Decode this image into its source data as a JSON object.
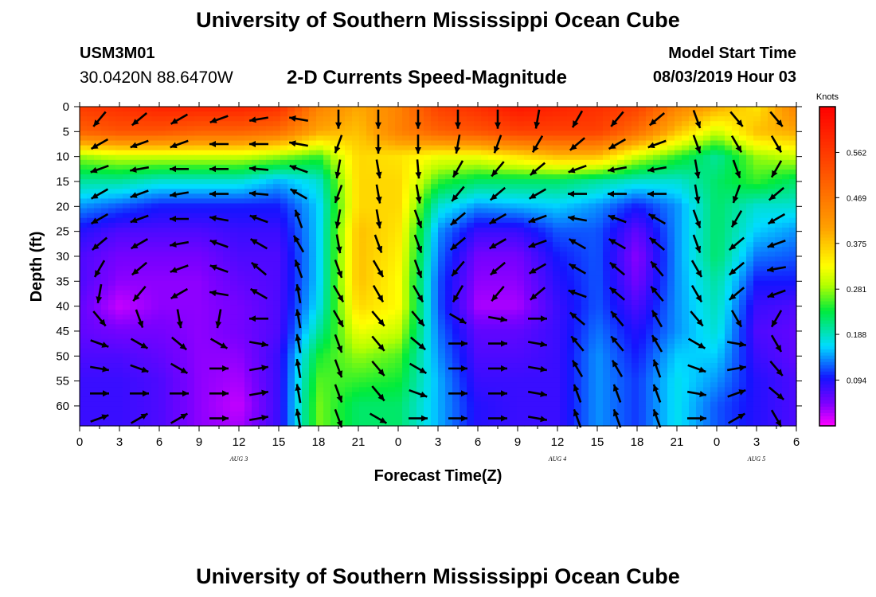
{
  "header": {
    "title": "University of Southern Mississippi Ocean Cube",
    "station_id": "USM3M01",
    "station_coords": "30.0420N 88.6470W",
    "chart_title": "2-D Currents Speed-Magnitude",
    "model_start_label": "Model Start Time",
    "model_start_value": "08/03/2019 Hour 03"
  },
  "footer": {
    "title": "University of Southern Mississippi Ocean Cube"
  },
  "chart_data": {
    "type": "heatmap",
    "title": "2-D Currents Speed-Magnitude",
    "xlabel": "Forecast Time(Z)",
    "ylabel": "Depth (ft)",
    "x_ticks": [
      "0",
      "3",
      "6",
      "9",
      "12",
      "15",
      "18",
      "21",
      "0",
      "3",
      "6",
      "9",
      "12",
      "15",
      "18",
      "21",
      "0",
      "3",
      "6"
    ],
    "day_labels": [
      {
        "label": "AUG 3",
        "hour": 12
      },
      {
        "label": "AUG 4",
        "hour": 36
      },
      {
        "label": "AUG 5",
        "hour": 51
      }
    ],
    "xlim_hours": [
      0,
      54
    ],
    "y_ticks": [
      "0",
      "5",
      "10",
      "15",
      "20",
      "25",
      "30",
      "35",
      "40",
      "45",
      "50",
      "55",
      "60"
    ],
    "ylim_ft": [
      0,
      64
    ],
    "colorbar": {
      "unit": "Knots",
      "tick_labels": [
        "0.562",
        "0.469",
        "0.375",
        "0.281",
        "0.188",
        "0.094"
      ],
      "tick_values": [
        0.562,
        0.469,
        0.375,
        0.281,
        0.188,
        0.094
      ],
      "range": [
        0.0,
        0.656
      ]
    },
    "speed_field": {
      "hours": [
        0,
        3,
        6,
        9,
        12,
        15,
        18,
        21,
        24,
        27,
        30,
        33,
        36,
        39,
        42,
        45,
        48,
        51,
        54
      ],
      "depths_ft": [
        0,
        5,
        10,
        15,
        20,
        25,
        30,
        35,
        40,
        45,
        50,
        55,
        60,
        64
      ],
      "values_knots": [
        [
          0.56,
          0.58,
          0.6,
          0.6,
          0.6,
          0.58,
          0.45,
          0.4,
          0.45,
          0.55,
          0.58,
          0.62,
          0.6,
          0.58,
          0.55,
          0.45,
          0.4,
          0.35,
          0.45
        ],
        [
          0.5,
          0.52,
          0.52,
          0.5,
          0.5,
          0.48,
          0.4,
          0.38,
          0.45,
          0.5,
          0.52,
          0.55,
          0.55,
          0.55,
          0.48,
          0.38,
          0.3,
          0.38,
          0.4
        ],
        [
          0.28,
          0.3,
          0.3,
          0.3,
          0.3,
          0.28,
          0.25,
          0.36,
          0.35,
          0.32,
          0.32,
          0.35,
          0.38,
          0.38,
          0.3,
          0.25,
          0.2,
          0.28,
          0.3
        ],
        [
          0.2,
          0.2,
          0.18,
          0.18,
          0.18,
          0.15,
          0.18,
          0.36,
          0.36,
          0.25,
          0.22,
          0.22,
          0.22,
          0.2,
          0.18,
          0.18,
          0.22,
          0.25,
          0.22
        ],
        [
          0.14,
          0.12,
          0.1,
          0.1,
          0.1,
          0.1,
          0.16,
          0.36,
          0.36,
          0.18,
          0.14,
          0.15,
          0.16,
          0.14,
          0.1,
          0.14,
          0.22,
          0.18,
          0.18
        ],
        [
          0.09,
          0.07,
          0.07,
          0.07,
          0.08,
          0.08,
          0.16,
          0.38,
          0.35,
          0.14,
          0.08,
          0.08,
          0.12,
          0.12,
          0.06,
          0.14,
          0.22,
          0.16,
          0.14
        ],
        [
          0.07,
          0.05,
          0.05,
          0.05,
          0.07,
          0.07,
          0.16,
          0.38,
          0.34,
          0.13,
          0.05,
          0.05,
          0.1,
          0.12,
          0.04,
          0.14,
          0.22,
          0.13,
          0.12
        ],
        [
          0.07,
          0.04,
          0.04,
          0.04,
          0.06,
          0.07,
          0.16,
          0.38,
          0.33,
          0.12,
          0.04,
          0.04,
          0.09,
          0.12,
          0.05,
          0.14,
          0.2,
          0.1,
          0.1
        ],
        [
          0.06,
          0.02,
          0.04,
          0.04,
          0.05,
          0.07,
          0.17,
          0.36,
          0.33,
          0.12,
          0.03,
          0.03,
          0.08,
          0.12,
          0.07,
          0.14,
          0.19,
          0.08,
          0.07
        ],
        [
          0.06,
          0.05,
          0.05,
          0.04,
          0.05,
          0.07,
          0.2,
          0.32,
          0.3,
          0.13,
          0.06,
          0.06,
          0.08,
          0.13,
          0.09,
          0.14,
          0.18,
          0.07,
          0.06
        ],
        [
          0.07,
          0.07,
          0.06,
          0.04,
          0.04,
          0.08,
          0.24,
          0.28,
          0.26,
          0.14,
          0.07,
          0.07,
          0.08,
          0.14,
          0.1,
          0.16,
          0.16,
          0.08,
          0.06
        ],
        [
          0.08,
          0.08,
          0.07,
          0.04,
          0.03,
          0.08,
          0.26,
          0.25,
          0.24,
          0.15,
          0.08,
          0.08,
          0.08,
          0.14,
          0.11,
          0.17,
          0.14,
          0.09,
          0.07
        ],
        [
          0.08,
          0.08,
          0.07,
          0.04,
          0.02,
          0.08,
          0.27,
          0.22,
          0.22,
          0.15,
          0.09,
          0.08,
          0.08,
          0.14,
          0.11,
          0.17,
          0.12,
          0.09,
          0.07
        ],
        [
          0.08,
          0.08,
          0.07,
          0.04,
          0.03,
          0.08,
          0.27,
          0.22,
          0.22,
          0.15,
          0.09,
          0.08,
          0.08,
          0.14,
          0.11,
          0.17,
          0.12,
          0.09,
          0.07
        ]
      ]
    },
    "vector_field": {
      "hours": [
        1.5,
        4.5,
        7.5,
        10.5,
        13.5,
        16.5,
        19.5,
        22.5,
        25.5,
        28.5,
        31.5,
        34.5,
        37.5,
        40.5,
        43.5,
        46.5,
        49.5,
        52.5
      ],
      "depths_ft": [
        2.5,
        7.5,
        12.5,
        17.5,
        22.5,
        27.5,
        32.5,
        37.5,
        42.5,
        47.5,
        52.5,
        57.5,
        62.5
      ],
      "direction_deg": [
        [
          220,
          230,
          240,
          250,
          260,
          280,
          180,
          180,
          180,
          180,
          180,
          190,
          210,
          220,
          230,
          160,
          140,
          140
        ],
        [
          240,
          250,
          250,
          270,
          270,
          280,
          200,
          180,
          180,
          190,
          200,
          210,
          230,
          240,
          250,
          160,
          150,
          150
        ],
        [
          250,
          260,
          270,
          270,
          275,
          290,
          190,
          170,
          175,
          210,
          220,
          230,
          250,
          260,
          260,
          170,
          160,
          210
        ],
        [
          240,
          250,
          260,
          270,
          275,
          300,
          200,
          170,
          170,
          220,
          230,
          240,
          270,
          270,
          270,
          170,
          200,
          230
        ],
        [
          240,
          250,
          270,
          280,
          290,
          340,
          190,
          170,
          160,
          230,
          240,
          250,
          280,
          290,
          300,
          160,
          210,
          240
        ],
        [
          230,
          240,
          260,
          290,
          300,
          330,
          170,
          160,
          160,
          230,
          240,
          250,
          300,
          300,
          310,
          160,
          230,
          250
        ],
        [
          210,
          230,
          250,
          290,
          310,
          340,
          160,
          150,
          160,
          220,
          230,
          240,
          300,
          310,
          320,
          150,
          230,
          260
        ],
        [
          190,
          220,
          240,
          280,
          300,
          350,
          150,
          150,
          150,
          210,
          220,
          230,
          290,
          310,
          320,
          150,
          230,
          250
        ],
        [
          140,
          160,
          170,
          190,
          270,
          350,
          150,
          140,
          140,
          120,
          100,
          90,
          310,
          320,
          330,
          140,
          150,
          210
        ],
        [
          110,
          120,
          130,
          120,
          100,
          350,
          160,
          140,
          130,
          90,
          90,
          100,
          320,
          320,
          330,
          120,
          100,
          150
        ],
        [
          100,
          110,
          120,
          90,
          80,
          350,
          160,
          140,
          120,
          90,
          90,
          100,
          330,
          330,
          340,
          110,
          80,
          140
        ],
        [
          90,
          90,
          90,
          90,
          80,
          350,
          160,
          140,
          110,
          90,
          90,
          100,
          340,
          340,
          340,
          100,
          70,
          130
        ],
        [
          70,
          60,
          60,
          90,
          80,
          350,
          160,
          120,
          90,
          90,
          90,
          100,
          340,
          340,
          340,
          90,
          60,
          150
        ]
      ]
    }
  }
}
